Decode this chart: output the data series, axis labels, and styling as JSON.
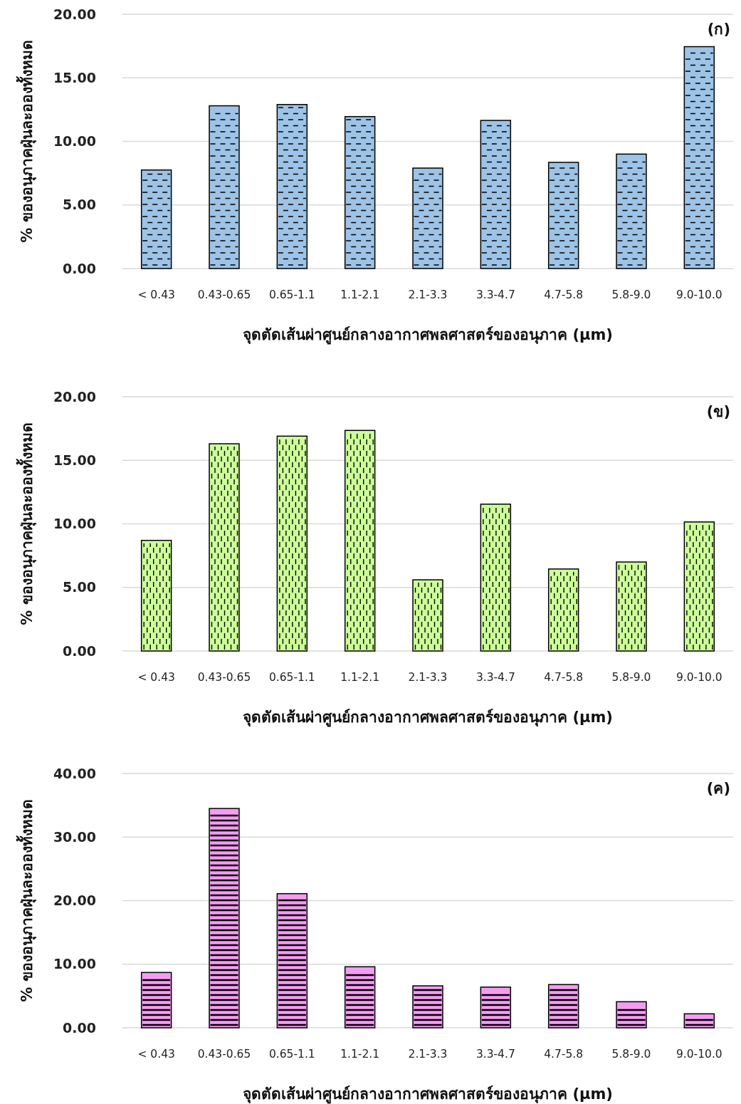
{
  "chart_data": [
    {
      "type": "bar",
      "categories": [
        "< 0.43",
        "0.43-0.65",
        "0.65-1.1",
        "1.1-2.1",
        "2.1-3.3",
        "3.3-4.7",
        "4.7-5.8",
        "5.8-9.0",
        "9.0-10.0"
      ],
      "values": [
        7.75,
        12.8,
        12.9,
        11.95,
        7.9,
        11.65,
        8.35,
        9.0,
        17.45
      ],
      "color": "#9dc3e6",
      "ylim": [
        0,
        20
      ],
      "yticks": [
        {
          "value": 0,
          "label": "0.00"
        },
        {
          "value": 5,
          "label": "5.00"
        },
        {
          "value": 10,
          "label": "10.00"
        },
        {
          "value": 15,
          "label": "15.00"
        },
        {
          "value": 20,
          "label": "20.00"
        }
      ],
      "grid": "y",
      "xlabel": "จุดตัดเส้นผ่าศูนย์กลางอากาศพลศาสตร์ของอนุภาค (μm)",
      "ylabel": "% ของอนุภาคฝุ่นละอองทั้งหมด",
      "annotations": [
        "(ก)"
      ]
    },
    {
      "type": "bar",
      "categories": [
        "< 0.43",
        "0.43-0.65",
        "0.65-1.1",
        "1.1-2.1",
        "2.1-3.3",
        "3.3-4.7",
        "4.7-5.8",
        "5.8-9.0",
        "9.0-10.0"
      ],
      "values": [
        8.7,
        16.3,
        16.9,
        17.35,
        5.6,
        11.55,
        6.45,
        7.0,
        10.15
      ],
      "color": "#ccff99",
      "ylim": [
        0,
        20
      ],
      "yticks": [
        {
          "value": 0,
          "label": "0.00"
        },
        {
          "value": 5,
          "label": "5.00"
        },
        {
          "value": 10,
          "label": "10.00"
        },
        {
          "value": 15,
          "label": "15.00"
        },
        {
          "value": 20,
          "label": "20.00"
        }
      ],
      "grid": "y",
      "xlabel": "จุดตัดเส้นผ่าศูนย์กลางอากาศพลศาสตร์ของอนุภาค (μm)",
      "ylabel": "% ของอนุภาคฝุ่นละอองทั้งหมด",
      "annotations": [
        "(ข)"
      ]
    },
    {
      "type": "bar",
      "categories": [
        "< 0.43",
        "0.43-0.65",
        "0.65-1.1",
        "1.1-2.1",
        "2.1-3.3",
        "3.3-4.7",
        "4.7-5.8",
        "5.8-9.0",
        "9.0-10.0"
      ],
      "values": [
        8.7,
        34.5,
        21.1,
        9.6,
        6.6,
        6.4,
        6.8,
        4.1,
        2.2
      ],
      "color": "#f49cf2",
      "ylim": [
        0,
        40
      ],
      "yticks": [
        {
          "value": 0,
          "label": "0.00"
        },
        {
          "value": 10,
          "label": "10.00"
        },
        {
          "value": 20,
          "label": "20.00"
        },
        {
          "value": 30,
          "label": "30.00"
        },
        {
          "value": 40,
          "label": "40.00"
        }
      ],
      "grid": "y",
      "xlabel": "จุดตัดเส้นผ่าศูนย์กลางอากาศพลศาสตร์ของอนุภาค (μm)",
      "ylabel": "% ของอนุภาคฝุ่นละอองทั้งหมด",
      "annotations": [
        "(ค)"
      ]
    }
  ]
}
